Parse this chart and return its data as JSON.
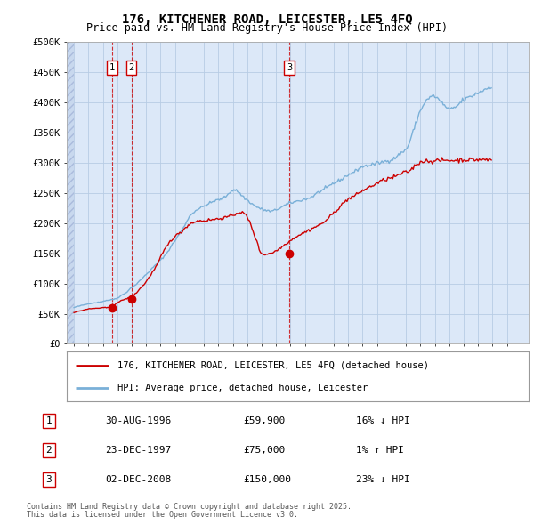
{
  "title1": "176, KITCHENER ROAD, LEICESTER, LE5 4FQ",
  "title2": "Price paid vs. HM Land Registry's House Price Index (HPI)",
  "background_color": "#ffffff",
  "plot_bg_color": "#dce8f8",
  "grid_color": "#b8cce4",
  "red_line_color": "#cc0000",
  "blue_line_color": "#7ab0d8",
  "sale_marker_color": "#cc0000",
  "sale_label_border": "#cc0000",
  "ylim": [
    0,
    500000
  ],
  "yticks": [
    0,
    50000,
    100000,
    150000,
    200000,
    250000,
    300000,
    350000,
    400000,
    450000,
    500000
  ],
  "ytick_labels": [
    "£0",
    "£50K",
    "£100K",
    "£150K",
    "£200K",
    "£250K",
    "£300K",
    "£350K",
    "£400K",
    "£450K",
    "£500K"
  ],
  "xlim_start": 1993.5,
  "xlim_end": 2025.5,
  "sales": [
    {
      "year": 1996.65,
      "price": 59900,
      "label": "1",
      "date": "30-AUG-1996",
      "amount": "£59,900",
      "hpi_text": "16% ↓ HPI"
    },
    {
      "year": 1997.98,
      "price": 75000,
      "label": "2",
      "date": "23-DEC-1997",
      "amount": "£75,000",
      "hpi_text": "1% ↑ HPI"
    },
    {
      "year": 2008.92,
      "price": 150000,
      "label": "3",
      "date": "02-DEC-2008",
      "amount": "£150,000",
      "hpi_text": "23% ↓ HPI"
    }
  ],
  "legend_line1": "176, KITCHENER ROAD, LEICESTER, LE5 4FQ (detached house)",
  "legend_line2": "HPI: Average price, detached house, Leicester",
  "footnote1": "Contains HM Land Registry data © Crown copyright and database right 2025.",
  "footnote2": "This data is licensed under the Open Government Licence v3.0.",
  "hpi_monthly_data": {
    "start_year": 1994,
    "start_month": 1,
    "values": [
      60000,
      61000,
      61500,
      62000,
      62500,
      63000,
      63500,
      64000,
      64500,
      65000,
      65500,
      66000,
      66500,
      67000,
      67200,
      67500,
      67800,
      68000,
      68200,
      68500,
      68800,
      69000,
      69500,
      70000,
      70500,
      71000,
      71500,
      72000,
      72200,
      72500,
      72800,
      73000,
      73500,
      74000,
      74500,
      75000,
      76000,
      77000,
      78500,
      80000,
      81000,
      82000,
      83000,
      84500,
      86000,
      88000,
      90000,
      92000,
      93000,
      94500,
      96000,
      97500,
      99000,
      101000,
      103000,
      105000,
      107000,
      109000,
      111000,
      113000,
      115000,
      117000,
      119000,
      121000,
      123000,
      125000,
      127000,
      129000,
      131000,
      133000,
      135000,
      137000,
      139000,
      141000,
      143000,
      145000,
      147500,
      150000,
      153000,
      156000,
      159000,
      162000,
      165000,
      168000,
      171000,
      174000,
      177000,
      180000,
      183000,
      186000,
      189000,
      192000,
      196000,
      200000,
      204000,
      208000,
      211000,
      213000,
      215000,
      217000,
      219000,
      221000,
      222000,
      223000,
      224000,
      225000,
      226000,
      227000,
      228000,
      229000,
      230000,
      231000,
      232000,
      233000,
      234000,
      235000,
      236000,
      237000,
      237500,
      238000,
      238500,
      239000,
      239500,
      240000,
      241000,
      242000,
      244000,
      246000,
      248000,
      250000,
      252000,
      254000,
      254500,
      255000,
      255000,
      254000,
      253000,
      251000,
      249000,
      247000,
      245000,
      243000,
      241000,
      239500,
      238000,
      236500,
      235000,
      233500,
      232000,
      230500,
      229000,
      228000,
      227000,
      226000,
      225000,
      224000,
      223000,
      222500,
      222000,
      221500,
      221000,
      220500,
      220000,
      219500,
      219500,
      220000,
      220500,
      221000,
      222000,
      223000,
      224000,
      225000,
      226000,
      227000,
      228000,
      229000,
      230000,
      231000,
      232000,
      233000,
      233500,
      234000,
      234500,
      235000,
      235500,
      236000,
      236500,
      237000,
      237500,
      238000,
      238500,
      239000,
      239500,
      240000,
      240500,
      241000,
      242000,
      243000,
      244000,
      245000,
      246500,
      248000,
      249500,
      251000,
      252000,
      253000,
      254000,
      255000,
      256000,
      257000,
      258000,
      259500,
      261000,
      262500,
      264000,
      265500,
      266000,
      267000,
      268000,
      269000,
      270000,
      271000,
      272000,
      273500,
      275000,
      276500,
      278000,
      279000,
      280000,
      281000,
      282000,
      283000,
      284000,
      285000,
      286000,
      287500,
      289000,
      290500,
      292000,
      293000,
      293500,
      294000,
      294500,
      295000,
      295000,
      295500,
      296000,
      296500,
      297000,
      297500,
      298000,
      298500,
      299000,
      299500,
      300000,
      300500,
      301000,
      301500,
      302000,
      302500,
      303000,
      303500,
      304000,
      304500,
      305000,
      306000,
      307000,
      308500,
      310000,
      311500,
      313000,
      314500,
      316000,
      317500,
      319000,
      320500,
      322000,
      325000,
      329000,
      334000,
      340000,
      346000,
      352000,
      358000,
      364000,
      370000,
      376000,
      382000,
      386000,
      390000,
      394000,
      398000,
      401000,
      403000,
      405000,
      407000,
      408000,
      409000,
      410000,
      411000,
      410000,
      409000,
      407000,
      405000,
      403000,
      401000,
      399000,
      397000,
      395000,
      393000,
      391000,
      389000,
      388000,
      388000,
      389000,
      390000,
      391000,
      392000,
      393000,
      395000,
      397000,
      399000,
      401000,
      403000,
      404000,
      405000,
      406000,
      407000,
      408000,
      409000,
      410000,
      411000,
      412000,
      413000,
      414000,
      415000,
      416000,
      417000,
      418000,
      419000,
      420000,
      421000,
      422000,
      423000,
      424000,
      425000,
      426000,
      427000
    ]
  },
  "red_monthly_data": {
    "start_year": 1994,
    "start_month": 1,
    "values": [
      52000,
      52500,
      53000,
      53500,
      54000,
      54500,
      55000,
      55500,
      56000,
      56500,
      57000,
      57500,
      57800,
      58000,
      58200,
      58400,
      58600,
      58800,
      59000,
      59100,
      59200,
      59300,
      59500,
      59700,
      59800,
      59850,
      59900,
      60000,
      60200,
      60500,
      61000,
      61500,
      62500,
      64000,
      65500,
      67000,
      68000,
      69000,
      70000,
      71000,
      72000,
      73000,
      74000,
      74500,
      75000,
      75500,
      76000,
      77000,
      78000,
      79500,
      81000,
      83000,
      85000,
      87000,
      89500,
      92000,
      94000,
      96000,
      98000,
      100000,
      103000,
      106000,
      109000,
      112000,
      115000,
      118000,
      121000,
      124000,
      127000,
      131000,
      135000,
      139000,
      143000,
      147000,
      151000,
      155000,
      158000,
      161000,
      164000,
      167000,
      170000,
      172000,
      174000,
      176000,
      178000,
      180000,
      181000,
      182000,
      183000,
      185000,
      187000,
      189000,
      191000,
      193000,
      195000,
      197000,
      198000,
      199000,
      200000,
      201000,
      202000,
      203000,
      203000,
      203500,
      204000,
      204000,
      204000,
      204000,
      204000,
      204000,
      204500,
      205000,
      205000,
      205000,
      205500,
      206000,
      206000,
      206000,
      206500,
      207000,
      207000,
      207500,
      208000,
      208000,
      208500,
      209000,
      209000,
      210000,
      210500,
      211000,
      211500,
      212000,
      213000,
      214000,
      215000,
      216000,
      217000,
      218000,
      218000,
      218000,
      217000,
      216000,
      215000,
      213000,
      210000,
      206000,
      202000,
      197000,
      192000,
      186000,
      180000,
      175000,
      170000,
      163000,
      157000,
      151000,
      150000,
      149000,
      148000,
      148000,
      148500,
      149000,
      149500,
      150000,
      150500,
      151000,
      152000,
      153000,
      154000,
      155000,
      156500,
      158000,
      159500,
      161000,
      162500,
      164000,
      165500,
      167000,
      168500,
      170000,
      171000,
      172500,
      174000,
      175500,
      177000,
      178000,
      179000,
      180000,
      181000,
      182000,
      183000,
      184000,
      185000,
      186000,
      187000,
      188000,
      189000,
      190000,
      191000,
      192000,
      193000,
      194000,
      195000,
      196000,
      197000,
      198000,
      199000,
      200500,
      202000,
      203500,
      205000,
      207000,
      209000,
      211000,
      213000,
      215000,
      217000,
      219000,
      221000,
      223000,
      225000,
      227000,
      229000,
      231000,
      233000,
      235000,
      237000,
      239000,
      240000,
      241000,
      242000,
      243000,
      244000,
      245000,
      246000,
      247000,
      248500,
      250000,
      251500,
      253000,
      254000,
      255000,
      256000,
      257000,
      258000,
      259000,
      260000,
      261000,
      262000,
      263000,
      264000,
      265000,
      266000,
      267000,
      268000,
      269000,
      270000,
      271000,
      272000,
      272500,
      273000,
      273500,
      274000,
      274500,
      275000,
      275500,
      276000,
      277000,
      278000,
      279000,
      280000,
      281000,
      282000,
      282500,
      283000,
      283500,
      284000,
      285000,
      286000,
      287000,
      288000,
      290000,
      292000,
      294000,
      296000,
      298000,
      299000,
      300000,
      301000,
      302000,
      302500,
      303000,
      303000,
      303000,
      303000,
      303000,
      303000,
      303000,
      303000,
      303000,
      303000,
      303000,
      303000,
      303000,
      303500,
      304000,
      304000,
      304000,
      304000,
      304000,
      304000,
      304000,
      304000,
      304000,
      304000,
      304000,
      304000,
      304000,
      304000,
      304000,
      304500,
      305000,
      305000,
      305000,
      305000,
      305000,
      305000,
      305000,
      305000,
      305000,
      305000,
      305000,
      305000,
      305000,
      305000,
      305000,
      305000,
      305000,
      305000,
      305000,
      305000,
      305000,
      305000,
      305000,
      305000,
      305000,
      305000,
      305000
    ]
  }
}
